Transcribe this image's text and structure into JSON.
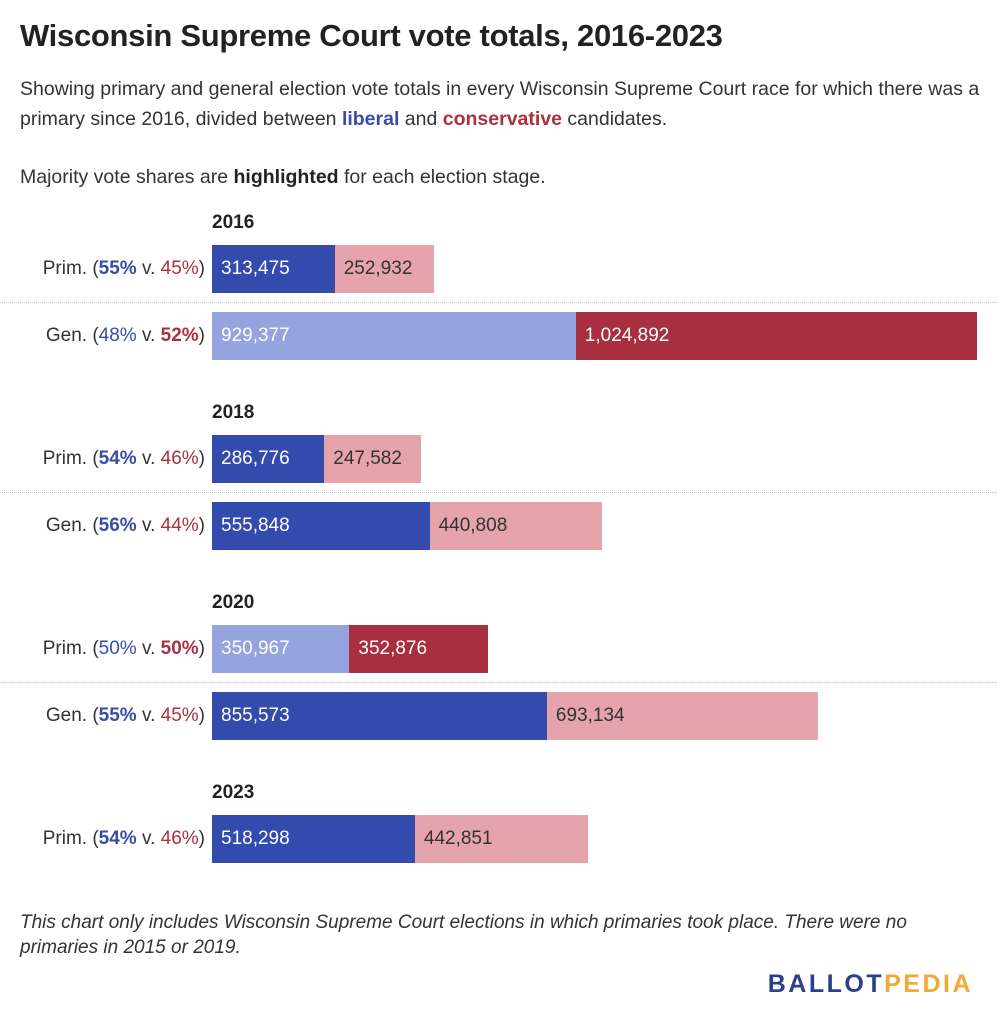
{
  "title": "Wisconsin Supreme Court vote totals, 2016-2023",
  "subtitle_pre": "Showing primary and general election vote totals in every Wisconsin Supreme Court race for which there was a primary since 2016, divided between ",
  "subtitle_liberal": "liberal",
  "subtitle_and": " and ",
  "subtitle_conservative": "conservative",
  "subtitle_post": " candidates.",
  "note_pre": "Majority vote shares are ",
  "note_bold": "highlighted",
  "note_post": " for each election stage.",
  "footer": "This chart only includes Wisconsin Supreme Court elections in which primaries took place. There were no primaries in 2015 or 2019.",
  "logo_part1": "BALLOT",
  "logo_part2": "PEDIA",
  "colors": {
    "liberal_highlight": "#344BAE",
    "liberal_muted": "#95A3DF",
    "conservative_highlight": "#A72F3F",
    "conservative_muted": "#E5A3AB",
    "liberal_text": "#3B4BAA",
    "conservative_text": "#A83240"
  },
  "chart_data": {
    "type": "bar",
    "stacked": true,
    "orientation": "horizontal",
    "groups": [
      {
        "year": "2016",
        "rows": [
          {
            "stage": "Prim.",
            "liberal_pct": "55%",
            "conservative_pct": "45%",
            "liberal": 313475,
            "conservative": 252932,
            "liberal_label": "313,475",
            "conservative_label": "252,932"
          },
          {
            "stage": "Gen.",
            "liberal_pct": "48%",
            "conservative_pct": "52%",
            "liberal": 929377,
            "conservative": 1024892,
            "liberal_label": "929,377",
            "conservative_label": "1,024,892"
          }
        ]
      },
      {
        "year": "2018",
        "rows": [
          {
            "stage": "Prim.",
            "liberal_pct": "54%",
            "conservative_pct": "46%",
            "liberal": 286776,
            "conservative": 247582,
            "liberal_label": "286,776",
            "conservative_label": "247,582"
          },
          {
            "stage": "Gen.",
            "liberal_pct": "56%",
            "conservative_pct": "44%",
            "liberal": 555848,
            "conservative": 440808,
            "liberal_label": "555,848",
            "conservative_label": "440,808"
          }
        ]
      },
      {
        "year": "2020",
        "rows": [
          {
            "stage": "Prim.",
            "liberal_pct": "50%",
            "conservative_pct": "50%",
            "liberal": 350967,
            "conservative": 352876,
            "liberal_label": "350,967",
            "conservative_label": "352,876"
          },
          {
            "stage": "Gen.",
            "liberal_pct": "55%",
            "conservative_pct": "45%",
            "liberal": 855573,
            "conservative": 693134,
            "liberal_label": "855,573",
            "conservative_label": "693,134"
          }
        ]
      },
      {
        "year": "2023",
        "rows": [
          {
            "stage": "Prim.",
            "liberal_pct": "54%",
            "conservative_pct": "46%",
            "liberal": 518298,
            "conservative": 442851,
            "liberal_label": "518,298",
            "conservative_label": "442,851"
          }
        ]
      }
    ]
  }
}
